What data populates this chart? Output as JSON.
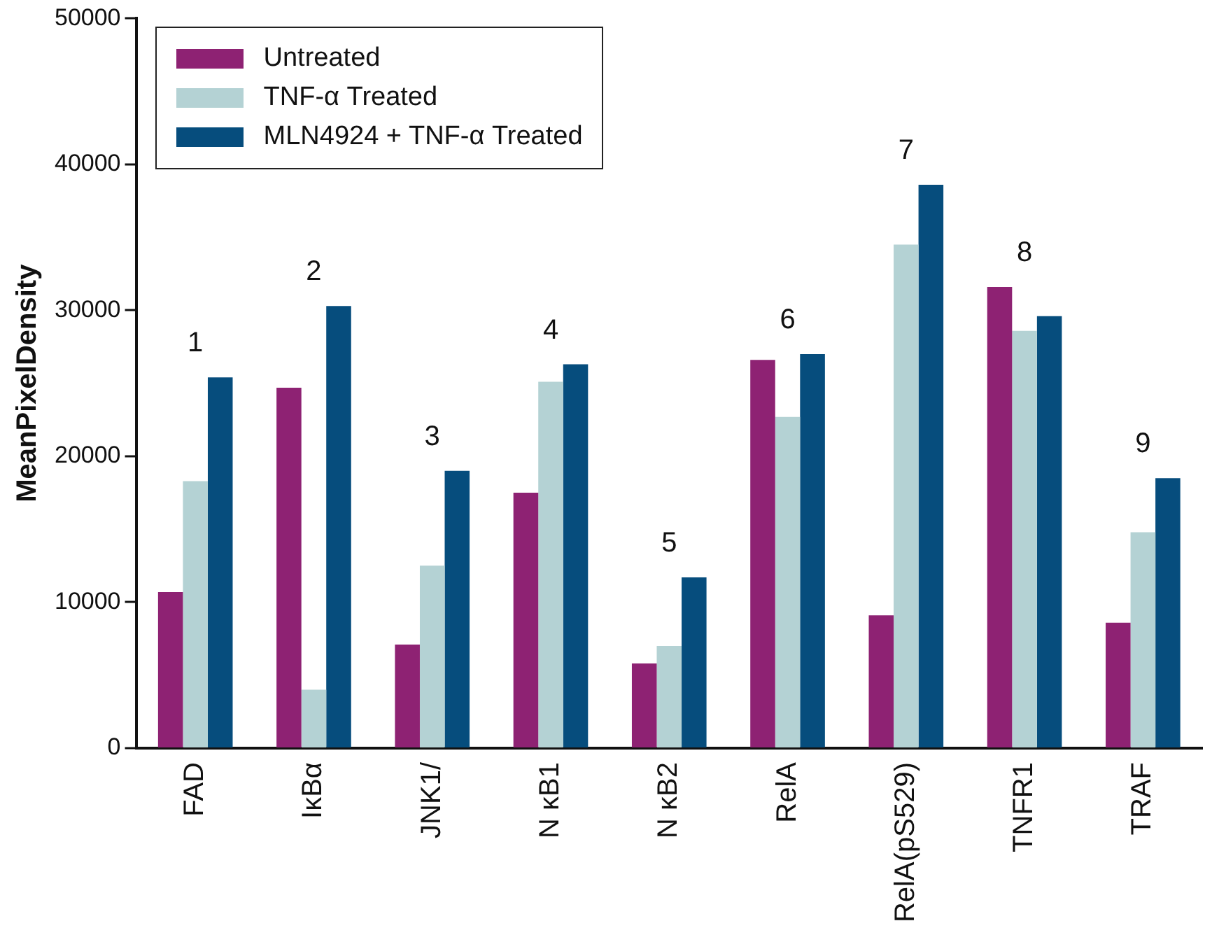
{
  "chart_data": {
    "type": "bar",
    "ylabel": "MeanPixelDensity",
    "categories": [
      "FAD",
      "IκBα",
      "JNK1/",
      "N κB1",
      "N κB2",
      "RelA",
      "RelA(pS529)",
      "TNFR1",
      "TRAF"
    ],
    "series": [
      {
        "name": "Untreated",
        "color": "#8e2273",
        "values": [
          10700,
          24700,
          7100,
          17500,
          5800,
          26600,
          9100,
          31600,
          8600
        ]
      },
      {
        "name": "TNF-α Treated",
        "color": "#b4d2d4",
        "values": [
          18300,
          4000,
          12500,
          25100,
          7000,
          22700,
          34500,
          28600,
          14800
        ]
      },
      {
        "name": "MLN4924 + TNF-α Treated",
        "color": "#064d7d",
        "values": [
          25400,
          30300,
          19000,
          26300,
          11700,
          27000,
          38600,
          29600,
          18500
        ]
      }
    ],
    "ylim": [
      0,
      50000
    ],
    "yticks": [
      0,
      10000,
      20000,
      30000,
      40000,
      50000
    ],
    "grid": false,
    "legend": "top left",
    "annotations": [
      "1",
      "2",
      "3",
      "4",
      "5",
      "6",
      "7",
      "8",
      "9"
    ]
  }
}
